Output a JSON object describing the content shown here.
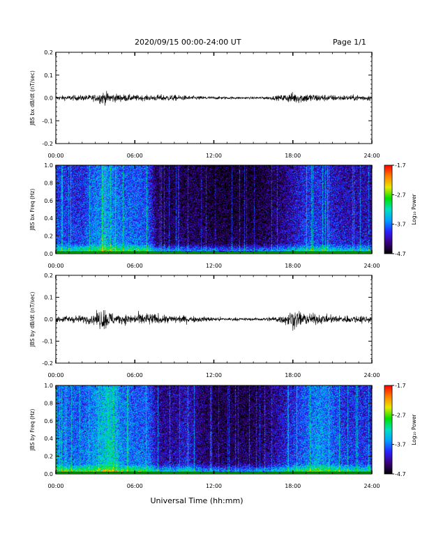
{
  "header": {
    "title": "2020/09/15  00:00-24:00 UT",
    "page": "Page 1/1"
  },
  "colorbar": {
    "title": "Log₁₀ Power",
    "ticks": [
      "-1.7",
      "-2.7",
      "-3.7",
      "-4.7"
    ],
    "range": [
      -4.7,
      -1.7
    ],
    "colors": [
      "#000000",
      "#3a007a",
      "#2a20ff",
      "#00a0ff",
      "#00e0c0",
      "#00e000",
      "#e8e800",
      "#ff8000",
      "#ff0000"
    ]
  },
  "x_ticks": [
    "00:00",
    "06:00",
    "12:00",
    "18:00",
    "24:00"
  ],
  "x_axis_label": "Universal Time (hh:mm)",
  "panels": {
    "p1": {
      "ylabel": "JBS bx dB/dt (nT/sec)",
      "yticks": [
        "0.2",
        "0.1",
        "0.0",
        "-0.1",
        "-0.2"
      ]
    },
    "p2": {
      "ylabel": "JBS bx Freq (Hz)",
      "yticks": [
        "1.0",
        "0.8",
        "0.6",
        "0.4",
        "0.2",
        "0.0"
      ]
    },
    "p3": {
      "ylabel": "JBS by dB/dt (nT/sec)",
      "yticks": [
        "0.2",
        "0.1",
        "0.0",
        "-0.1",
        "-0.2"
      ]
    },
    "p4": {
      "ylabel": "JBS by Freq (Hz)",
      "yticks": [
        "1.0",
        "0.8",
        "0.6",
        "0.4",
        "0.2",
        "0.0"
      ]
    }
  },
  "chart_data": [
    {
      "type": "line",
      "ylabel": "JBS bx dB/dt (nT/sec)",
      "xlim": [
        0,
        24
      ],
      "ylim": [
        -0.2,
        0.2
      ],
      "x": [
        0,
        1,
        2,
        3,
        3.5,
        4,
        4.5,
        5,
        6,
        7,
        8,
        9,
        10,
        11,
        12,
        13,
        14,
        15,
        16,
        17,
        18,
        19,
        20,
        21,
        22,
        23,
        24
      ],
      "amplitude": [
        0.012,
        0.014,
        0.015,
        0.018,
        0.035,
        0.03,
        0.022,
        0.02,
        0.016,
        0.014,
        0.018,
        0.016,
        0.012,
        0.01,
        0.008,
        0.007,
        0.006,
        0.006,
        0.008,
        0.014,
        0.03,
        0.025,
        0.02,
        0.016,
        0.014,
        0.016,
        0.015
      ]
    },
    {
      "type": "heatmap",
      "ylabel": "JBS bx Freq (Hz)",
      "xlim": [
        0,
        24
      ],
      "ylim": [
        0,
        1.0
      ],
      "zlim": [
        -4.7,
        -1.7
      ],
      "x": [
        0,
        1,
        2,
        3,
        4,
        5,
        6,
        7,
        7.6,
        8,
        9,
        10,
        11,
        12,
        13,
        14,
        15,
        16,
        17,
        18,
        19,
        20,
        21,
        22,
        23,
        24
      ],
      "power": [
        -3.9,
        -4.0,
        -4.0,
        -3.7,
        -3.6,
        -3.8,
        -3.8,
        -3.9,
        -4.4,
        -4.5,
        -4.5,
        -4.5,
        -4.5,
        -4.6,
        -4.6,
        -4.6,
        -4.6,
        -4.5,
        -4.4,
        -4.2,
        -4.0,
        -4.0,
        -4.1,
        -4.2,
        -4.2,
        -4.2
      ]
    },
    {
      "type": "line",
      "ylabel": "JBS by dB/dt (nT/sec)",
      "xlim": [
        0,
        24
      ],
      "ylim": [
        -0.2,
        0.2
      ],
      "x": [
        0,
        1,
        2,
        3,
        3.5,
        4,
        4.5,
        5,
        6,
        7,
        8,
        9,
        10,
        11,
        12,
        13,
        14,
        15,
        16,
        17,
        18,
        19,
        20,
        21,
        22,
        23,
        24
      ],
      "amplitude": [
        0.018,
        0.02,
        0.02,
        0.03,
        0.06,
        0.05,
        0.03,
        0.025,
        0.03,
        0.035,
        0.025,
        0.022,
        0.02,
        0.015,
        0.012,
        0.01,
        0.008,
        0.008,
        0.01,
        0.02,
        0.05,
        0.035,
        0.025,
        0.022,
        0.02,
        0.022,
        0.02
      ]
    },
    {
      "type": "heatmap",
      "ylabel": "JBS by Freq (Hz)",
      "xlim": [
        0,
        24
      ],
      "ylim": [
        0,
        1.0
      ],
      "zlim": [
        -4.7,
        -1.7
      ],
      "x": [
        0,
        1,
        2,
        3,
        4,
        5,
        6,
        7,
        7.6,
        8,
        9,
        10,
        11,
        12,
        13,
        14,
        15,
        16,
        17,
        18,
        19,
        20,
        21,
        22,
        23,
        24
      ],
      "power": [
        -3.7,
        -3.8,
        -3.8,
        -3.6,
        -3.3,
        -3.7,
        -3.8,
        -3.8,
        -4.2,
        -4.3,
        -4.3,
        -4.1,
        -4.4,
        -4.5,
        -4.5,
        -4.5,
        -4.5,
        -4.4,
        -4.2,
        -4.0,
        -3.8,
        -3.6,
        -3.8,
        -4.0,
        -4.0,
        -4.0
      ]
    }
  ]
}
